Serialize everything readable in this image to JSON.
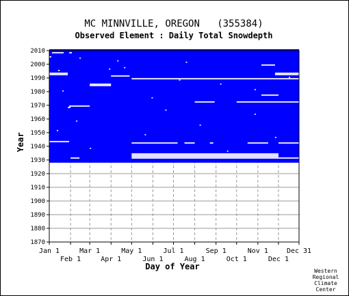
{
  "chart_data": {
    "type": "heatmap",
    "title": "MC MINNVILLE, OREGON   (355384)",
    "subtitle": "Observed Element : Daily Total Snowdepth",
    "xlabel": "Day of Year",
    "ylabel": "Year",
    "ylim": [
      1870,
      2010
    ],
    "xlim": [
      1,
      365
    ],
    "y_ticks": [
      "1870",
      "1880",
      "1890",
      "1900",
      "1910",
      "1920",
      "1930",
      "1940",
      "1950",
      "1960",
      "1970",
      "1980",
      "1990",
      "2000",
      "2010"
    ],
    "x_ticks_top": [
      {
        "label": "Jan 1",
        "day": 1
      },
      {
        "label": "Mar 1",
        "day": 60
      },
      {
        "label": "May 1",
        "day": 121
      },
      {
        "label": "Jul 1",
        "day": 182
      },
      {
        "label": "Sep 1",
        "day": 244
      },
      {
        "label": "Nov 1",
        "day": 305
      },
      {
        "label": "Dec 31",
        "day": 365
      }
    ],
    "x_ticks_bottom": [
      {
        "label": "Feb 1",
        "day": 32
      },
      {
        "label": "Apr 1",
        "day": 91
      },
      {
        "label": "Jun 1",
        "day": 152
      },
      {
        "label": "Aug 1",
        "day": 213
      },
      {
        "label": "Oct 1",
        "day": 274
      },
      {
        "label": "Dec 1",
        "day": 335
      }
    ],
    "grid": true,
    "data_color": "#0000ff",
    "missing_color": "#ffffff",
    "coverage": {
      "start_year": 1928,
      "end_year": 2010,
      "full_years": [
        1928,
        1929,
        1930
      ],
      "partial_years": [
        {
          "year": 1931,
          "from_day": 1,
          "to_day": 121
        },
        {
          "year": 1932,
          "from_day": 335,
          "to_day": 365
        }
      ]
    },
    "missing_segments": [
      {
        "year": 2008,
        "from_day": 5,
        "to_day": 22
      },
      {
        "year": 2008,
        "from_day": 30,
        "to_day": 34
      },
      {
        "year": 2005,
        "from_day": 1,
        "to_day": 4
      },
      {
        "year": 1999,
        "from_day": 310,
        "to_day": 330
      },
      {
        "year": 1995,
        "from_day": 14,
        "to_day": 16
      },
      {
        "year": 1993,
        "from_day": 1,
        "to_day": 28
      },
      {
        "year": 1992,
        "from_day": 1,
        "to_day": 28
      },
      {
        "year": 1993,
        "from_day": 330,
        "to_day": 365
      },
      {
        "year": 1992,
        "from_day": 330,
        "to_day": 365
      },
      {
        "year": 1991,
        "from_day": 91,
        "to_day": 118
      },
      {
        "year": 1989,
        "from_day": 121,
        "to_day": 365
      },
      {
        "year": 1985,
        "from_day": 60,
        "to_day": 91
      },
      {
        "year": 1984,
        "from_day": 60,
        "to_day": 91
      },
      {
        "year": 1977,
        "from_day": 310,
        "to_day": 335
      },
      {
        "year": 1972,
        "from_day": 213,
        "to_day": 242
      },
      {
        "year": 1972,
        "from_day": 274,
        "to_day": 365
      },
      {
        "year": 1969,
        "from_day": 30,
        "to_day": 60
      },
      {
        "year": 1968,
        "from_day": 28,
        "to_day": 32
      },
      {
        "year": 1943,
        "from_day": 1,
        "to_day": 30
      },
      {
        "year": 1942,
        "from_day": 121,
        "to_day": 188
      },
      {
        "year": 1942,
        "from_day": 198,
        "to_day": 213
      },
      {
        "year": 1942,
        "from_day": 235,
        "to_day": 240
      },
      {
        "year": 1942,
        "from_day": 290,
        "to_day": 320
      },
      {
        "year": 1942,
        "from_day": 335,
        "to_day": 365
      },
      {
        "year": 1934,
        "from_day": 121,
        "to_day": 335
      },
      {
        "year": 1933,
        "from_day": 121,
        "to_day": 335
      },
      {
        "year": 1932,
        "from_day": 121,
        "to_day": 335
      },
      {
        "year": 1931,
        "from_day": 121,
        "to_day": 365
      },
      {
        "year": 1931,
        "from_day": 32,
        "to_day": 45
      }
    ]
  },
  "credit": [
    "Western",
    "Regional",
    "Climate",
    "Center"
  ]
}
